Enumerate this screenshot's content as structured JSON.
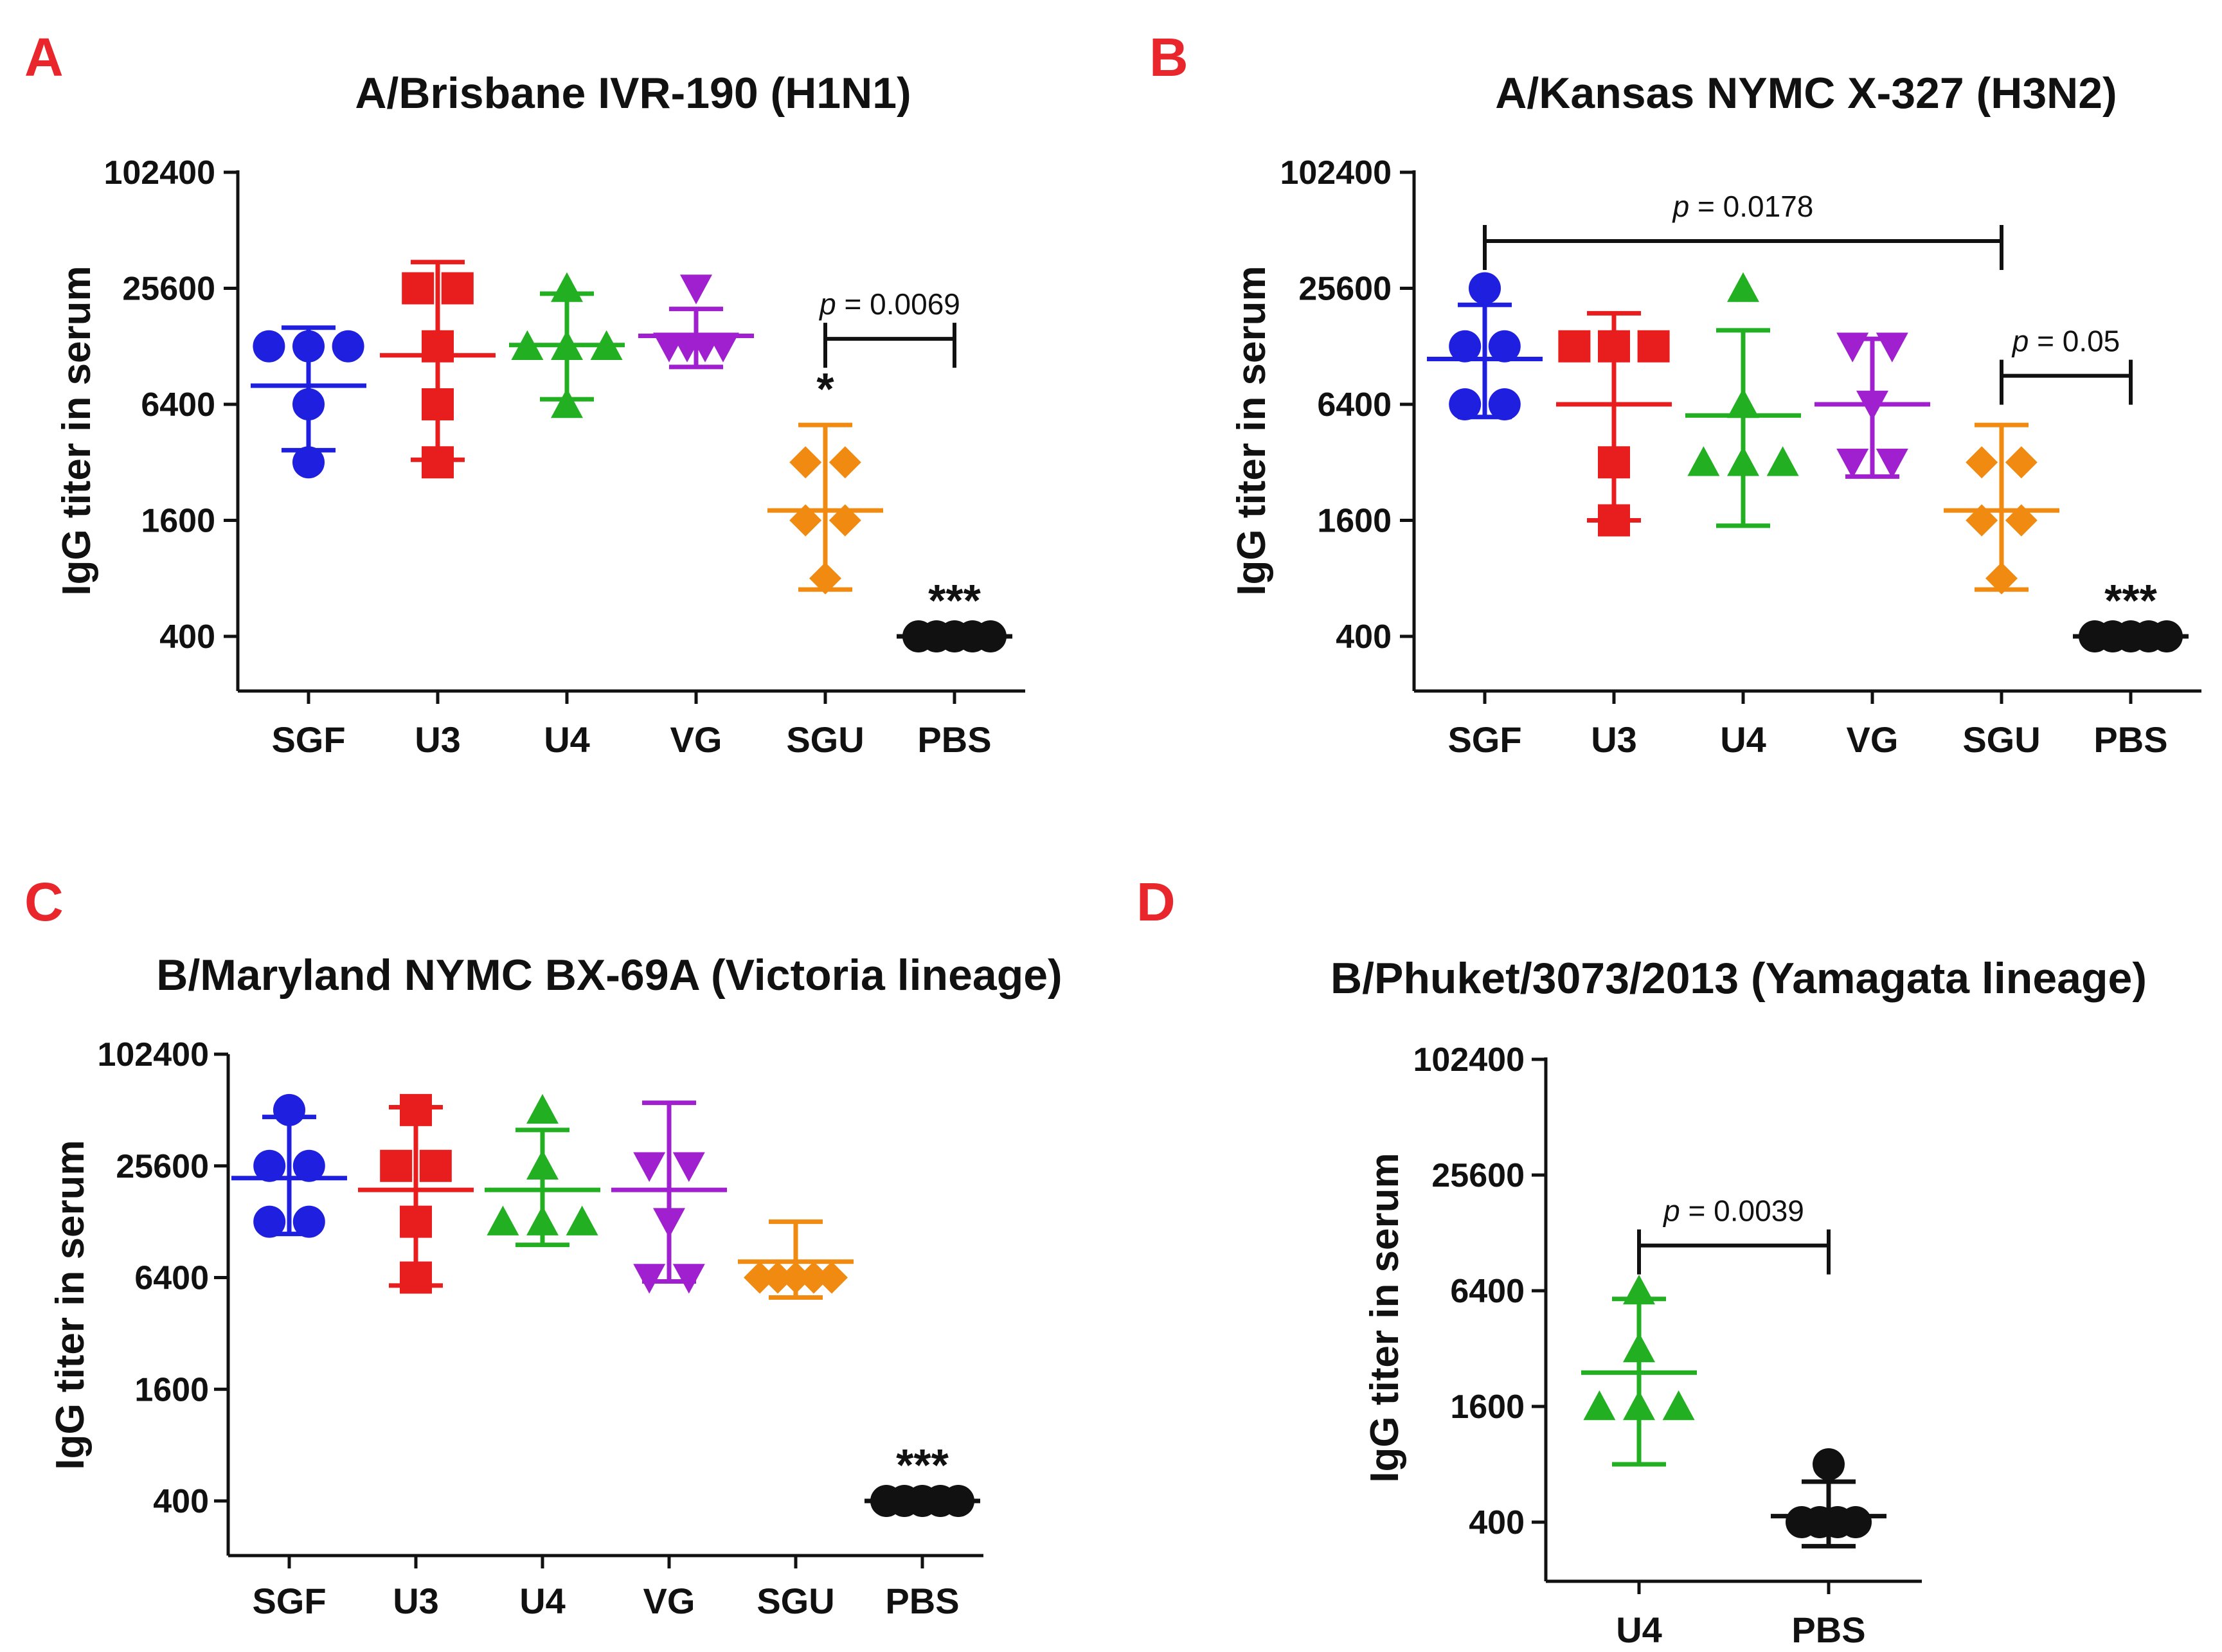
{
  "chart_data": [
    {
      "type": "scatter",
      "panel_letter": "A",
      "title": "A/Brisbane IVR-190 (H1N1)",
      "xlabel": "",
      "ylabel": "IgG titer in serum",
      "yscale": "log2",
      "yticks": [
        400,
        1600,
        6400,
        25600,
        102400
      ],
      "ylim": [
        250,
        102400
      ],
      "categories": [
        "SGF",
        "U3",
        "U4",
        "VG",
        "SGU",
        "PBS"
      ],
      "series": [
        {
          "category": "SGF",
          "color": "#1f1fe0",
          "marker": "circle",
          "points": [
            12800,
            12800,
            6400,
            12800,
            3200
          ],
          "mean": 8000,
          "err": [
            3700,
            16000
          ]
        },
        {
          "category": "U3",
          "color": "#e81e1e",
          "marker": "square",
          "points": [
            25600,
            25600,
            12800,
            6400,
            3200
          ],
          "mean": 11500,
          "err": [
            3300,
            35000
          ]
        },
        {
          "category": "U4",
          "color": "#22b022",
          "marker": "triangle-up",
          "points": [
            25600,
            12800,
            12800,
            12800,
            6400
          ],
          "mean": 13000,
          "err": [
            6800,
            24000
          ]
        },
        {
          "category": "VG",
          "color": "#a020d0",
          "marker": "triangle-down",
          "points": [
            25600,
            12800,
            12800,
            12800,
            12800
          ],
          "mean": 14500,
          "err": [
            10000,
            20000
          ]
        },
        {
          "category": "SGU",
          "color": "#f08a10",
          "marker": "diamond",
          "points": [
            3200,
            3200,
            1600,
            1600,
            800
          ],
          "mean": 1800,
          "err": [
            700,
            5000
          ]
        },
        {
          "category": "PBS",
          "color": "#111111",
          "marker": "circle",
          "points": [
            400,
            400,
            400,
            400,
            400
          ],
          "mean": 400,
          "err": [
            400,
            400
          ]
        }
      ],
      "annotations": [
        {
          "category": "SGU",
          "text": "*"
        },
        {
          "category": "PBS",
          "text": "***"
        }
      ],
      "comparisons": [
        {
          "from": "SGU",
          "to": "PBS",
          "p_symbol": "p",
          "p_text": " = 0.0069",
          "y": 14000
        }
      ]
    },
    {
      "type": "scatter",
      "panel_letter": "B",
      "title": "A/Kansas NYMC X-327 (H3N2)",
      "xlabel": "",
      "ylabel": "IgG titer in serum",
      "yscale": "log2",
      "yticks": [
        400,
        1600,
        6400,
        25600,
        102400
      ],
      "ylim": [
        250,
        102400
      ],
      "categories": [
        "SGF",
        "U3",
        "U4",
        "VG",
        "SGU",
        "PBS"
      ],
      "series": [
        {
          "category": "SGF",
          "color": "#1f1fe0",
          "marker": "circle",
          "points": [
            25600,
            12800,
            12800,
            6400,
            6400
          ],
          "mean": 11000,
          "err": [
            5500,
            21000
          ]
        },
        {
          "category": "U3",
          "color": "#e81e1e",
          "marker": "square",
          "points": [
            12800,
            12800,
            12800,
            3200,
            1600
          ],
          "mean": 6400,
          "err": [
            1600,
            19000
          ]
        },
        {
          "category": "U4",
          "color": "#22b022",
          "marker": "triangle-up",
          "points": [
            25600,
            6400,
            3200,
            3200,
            3200
          ],
          "mean": 5600,
          "err": [
            1500,
            15500
          ]
        },
        {
          "category": "VG",
          "color": "#a020d0",
          "marker": "triangle-down",
          "points": [
            12800,
            12800,
            6400,
            3200,
            3200
          ],
          "mean": 6400,
          "err": [
            2700,
            14000
          ]
        },
        {
          "category": "SGU",
          "color": "#f08a10",
          "marker": "diamond",
          "points": [
            3200,
            3200,
            1600,
            1600,
            800
          ],
          "mean": 1800,
          "err": [
            700,
            5000
          ]
        },
        {
          "category": "PBS",
          "color": "#111111",
          "marker": "circle",
          "points": [
            400,
            400,
            400,
            400,
            400
          ],
          "mean": 400,
          "err": [
            400,
            400
          ]
        }
      ],
      "annotations": [
        {
          "category": "PBS",
          "text": "***"
        }
      ],
      "comparisons": [
        {
          "from": "SGF",
          "to": "SGU",
          "p_symbol": "p",
          "p_text": " = 0.0178",
          "y": 45000
        },
        {
          "from": "SGU",
          "to": "PBS",
          "p_symbol": "p",
          "p_text": " = 0.05",
          "y": 9000
        }
      ]
    },
    {
      "type": "scatter",
      "panel_letter": "C",
      "title": "B/Maryland NYMC BX-69A (Victoria lineage)",
      "xlabel": "",
      "ylabel": "IgG titer in serum",
      "yscale": "log2",
      "yticks": [
        400,
        1600,
        6400,
        25600,
        102400
      ],
      "ylim": [
        250,
        102400
      ],
      "categories": [
        "SGF",
        "U3",
        "U4",
        "VG",
        "SGU",
        "PBS"
      ],
      "series": [
        {
          "category": "SGF",
          "color": "#1f1fe0",
          "marker": "circle",
          "points": [
            51200,
            25600,
            25600,
            12800,
            12800
          ],
          "mean": 22000,
          "err": [
            11000,
            47000
          ]
        },
        {
          "category": "U3",
          "color": "#e81e1e",
          "marker": "square",
          "points": [
            51200,
            25600,
            25600,
            12800,
            6400
          ],
          "mean": 19000,
          "err": [
            5800,
            53000
          ]
        },
        {
          "category": "U4",
          "color": "#22b022",
          "marker": "triangle-up",
          "points": [
            51200,
            25600,
            12800,
            12800,
            12800
          ],
          "mean": 19000,
          "err": [
            9600,
            40000
          ]
        },
        {
          "category": "VG",
          "color": "#a020d0",
          "marker": "triangle-down",
          "points": [
            25600,
            25600,
            12800,
            6400,
            6400
          ],
          "mean": 19000,
          "err": [
            6100,
            56000
          ]
        },
        {
          "category": "SGU",
          "color": "#f08a10",
          "marker": "diamond",
          "points": [
            6400,
            6400,
            6400,
            6400,
            6400
          ],
          "mean": 7800,
          "err": [
            5000,
            12800
          ]
        },
        {
          "category": "PBS",
          "color": "#111111",
          "marker": "circle",
          "points": [
            400,
            400,
            400,
            400,
            400
          ],
          "mean": 400,
          "err": [
            400,
            400
          ]
        }
      ],
      "annotations": [
        {
          "category": "PBS",
          "text": "***"
        }
      ],
      "comparisons": []
    },
    {
      "type": "scatter",
      "panel_letter": "D",
      "title": "B/Phuket/3073/2013 (Yamagata lineage)",
      "xlabel": "",
      "ylabel": "IgG titer in serum",
      "yscale": "log2",
      "yticks": [
        400,
        1600,
        6400,
        25600,
        102400
      ],
      "ylim": [
        250,
        102400
      ],
      "categories": [
        "U4",
        "PBS"
      ],
      "series": [
        {
          "category": "U4",
          "color": "#22b022",
          "marker": "triangle-up",
          "points": [
            6400,
            3200,
            1600,
            1600,
            1600
          ],
          "mean": 2400,
          "err": [
            800,
            5800
          ]
        },
        {
          "category": "PBS",
          "color": "#111111",
          "marker": "circle",
          "points": [
            800,
            400,
            400,
            400,
            400
          ],
          "mean": 430,
          "err": [
            300,
            650
          ]
        }
      ],
      "annotations": [],
      "comparisons": [
        {
          "from": "U4",
          "to": "PBS",
          "p_symbol": "p",
          "p_text": " = 0.0039",
          "y": 11000
        }
      ]
    }
  ]
}
